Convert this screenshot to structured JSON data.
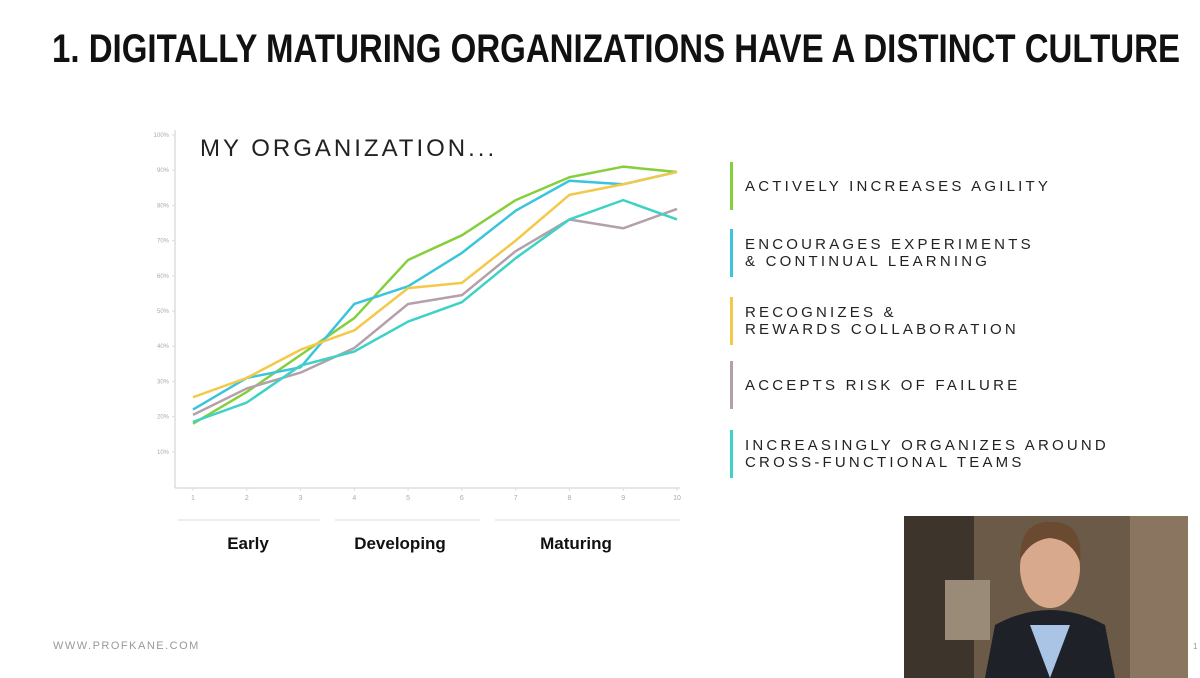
{
  "slide": {
    "title": "1. DIGITALLY MATURING ORGANIZATIONS HAVE A DISTINCT CULTURE",
    "footer": "WWW.PROFKANE.COM",
    "page_number": "1"
  },
  "chart_data": {
    "type": "line",
    "title": "MY ORGANIZATION...",
    "x": [
      1,
      2,
      3,
      4,
      5,
      6,
      7,
      8,
      9,
      10
    ],
    "xlim": [
      1,
      10
    ],
    "xticks": [
      1,
      2,
      3,
      4,
      5,
      6,
      7,
      8,
      9,
      10
    ],
    "ylim": [
      0,
      100
    ],
    "yticks": [
      {
        "value": 10,
        "label": "10%"
      },
      {
        "value": 20,
        "label": "20%"
      },
      {
        "value": 30,
        "label": "30%"
      },
      {
        "value": 40,
        "label": "40%"
      },
      {
        "value": 50,
        "label": "50%"
      },
      {
        "value": 60,
        "label": "60%"
      },
      {
        "value": 70,
        "label": "70%"
      },
      {
        "value": 80,
        "label": "80%"
      },
      {
        "value": 90,
        "label": "90%"
      },
      {
        "value": 100,
        "label": "100%"
      }
    ],
    "x_groups": [
      "Early",
      "Developing",
      "Maturing"
    ],
    "series": [
      {
        "name": "ACTIVELY INCREASES AGILITY",
        "color": "#86cf3c",
        "values": [
          18,
          27,
          37.5,
          48,
          64.5,
          71.5,
          81.5,
          88,
          91,
          89.5
        ]
      },
      {
        "name": "ENCOURAGES EXPERIMENTS\n& CONTINUAL LEARNING",
        "color": "#3cc4dc",
        "values": [
          22,
          31,
          34,
          52,
          57,
          66.5,
          78.5,
          87,
          86,
          89.5
        ]
      },
      {
        "name": "RECOGNIZES &\nREWARDS COLLABORATION",
        "color": "#f3c94a",
        "values": [
          25.5,
          31,
          39,
          44.5,
          56.5,
          58,
          70,
          83,
          86,
          89.5
        ]
      },
      {
        "name": "ACCEPTS RISK OF FAILURE",
        "color": "#b3a0aa",
        "values": [
          20.5,
          28,
          32.5,
          39.5,
          52,
          54.5,
          67,
          76,
          73.5,
          79
        ]
      },
      {
        "name": "INCREASINGLY ORGANIZES AROUND\nCROSS-FUNCTIONAL TEAMS",
        "color": "#3ed2c6",
        "values": [
          18.5,
          24,
          34.5,
          38.5,
          47,
          52.5,
          65,
          76,
          81.5,
          76
        ]
      }
    ]
  }
}
